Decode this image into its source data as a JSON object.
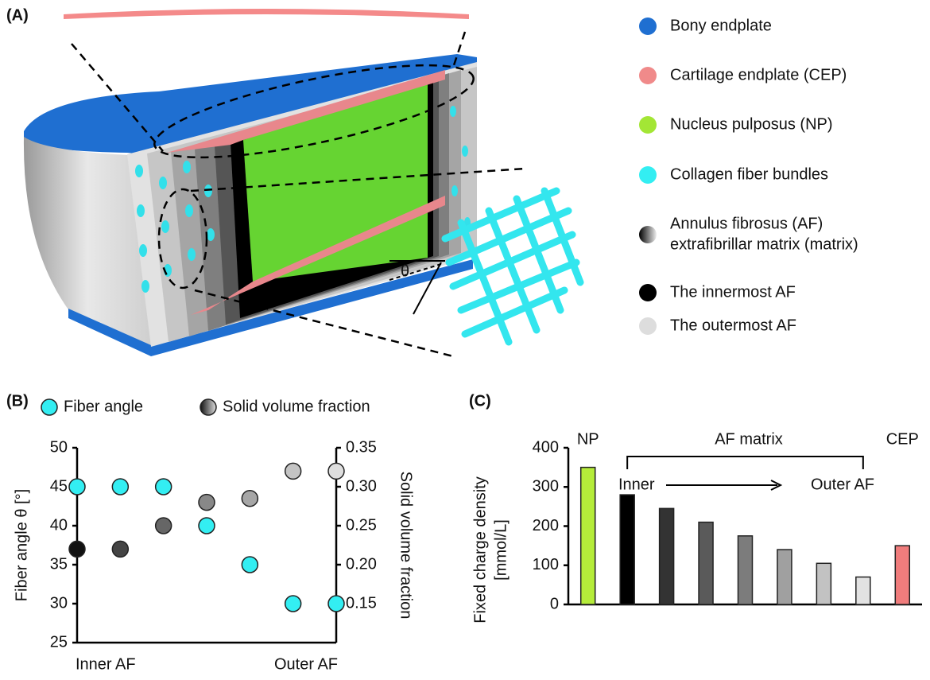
{
  "panel_a": {
    "panel_label": "(A)",
    "theta": "θ",
    "legend": [
      {
        "label": [
          "Bony endplate"
        ],
        "color": "#1f6fd1"
      },
      {
        "label": [
          "Cartilage endplate (CEP)"
        ],
        "color": "#f08a8a"
      },
      {
        "label": [
          "Nucleus pulposus (NP)"
        ],
        "color": "#a3e635"
      },
      {
        "label": [
          "Collagen fiber bundles"
        ],
        "color": "#33eef2"
      },
      {
        "label": [
          "Annulus fibrosus (AF)",
          "extrafibrillar matrix (matrix)"
        ],
        "color": "gradient"
      },
      {
        "label": [
          "The innermost AF"
        ],
        "color": "#000000"
      },
      {
        "label": [
          "The outermost AF"
        ],
        "color": "#dddddd"
      }
    ]
  },
  "chart_data": [
    {
      "type": "scatter",
      "panel_label": "(B)",
      "categories": [
        "Inner AF",
        null,
        null,
        null,
        null,
        null,
        "Outer AF"
      ],
      "ylabel": "Fiber angle θ [°]",
      "y2label": "Solid volume fraction",
      "ylim": [
        25,
        50
      ],
      "yticks": [
        25,
        30,
        35,
        40,
        45,
        50
      ],
      "y2lim": [
        0.1,
        0.35
      ],
      "y2ticks": [
        {
          "value": 0.15,
          "label": "0.15"
        },
        {
          "value": 0.2,
          "label": "0.20"
        },
        {
          "value": 0.25,
          "label": "0.25"
        },
        {
          "value": 0.3,
          "label": "0.30"
        },
        {
          "value": 0.35,
          "label": "0.35"
        }
      ],
      "series": [
        {
          "name": "Fiber angle",
          "color": "#33eef2",
          "values": [
            45,
            45,
            45,
            40,
            35,
            30,
            30
          ]
        },
        {
          "name": "Solid volume fraction",
          "axis": "y2",
          "colors": [
            "#111111",
            "#444444",
            "#666666",
            "#888888",
            "#a6a6a6",
            "#c4c4c4",
            "#dedede"
          ],
          "values": [
            0.22,
            0.22,
            0.25,
            0.28,
            0.285,
            0.32,
            0.32
          ]
        }
      ]
    },
    {
      "type": "bar",
      "panel_label": "(C)",
      "categories": [
        null,
        null,
        null,
        null,
        null,
        null,
        null,
        null,
        null
      ],
      "ylabel": [
        "Fixed charge density",
        "[mmol/L]"
      ],
      "ylim": [
        0,
        400
      ],
      "yticks": [
        0,
        100,
        200,
        300,
        400
      ],
      "values": [
        350,
        280,
        245,
        210,
        175,
        140,
        105,
        70,
        150
      ],
      "colors": [
        "#b5ec3a",
        "#000000",
        "#333333",
        "#5a5a5a",
        "#7c7c7c",
        "#a0a0a0",
        "#c2c2c2",
        "#e2e2e2",
        "#f07c7c"
      ],
      "annotations": [
        "NP",
        "AF matrix",
        "Inner",
        "Outer AF",
        "CEP"
      ]
    }
  ]
}
